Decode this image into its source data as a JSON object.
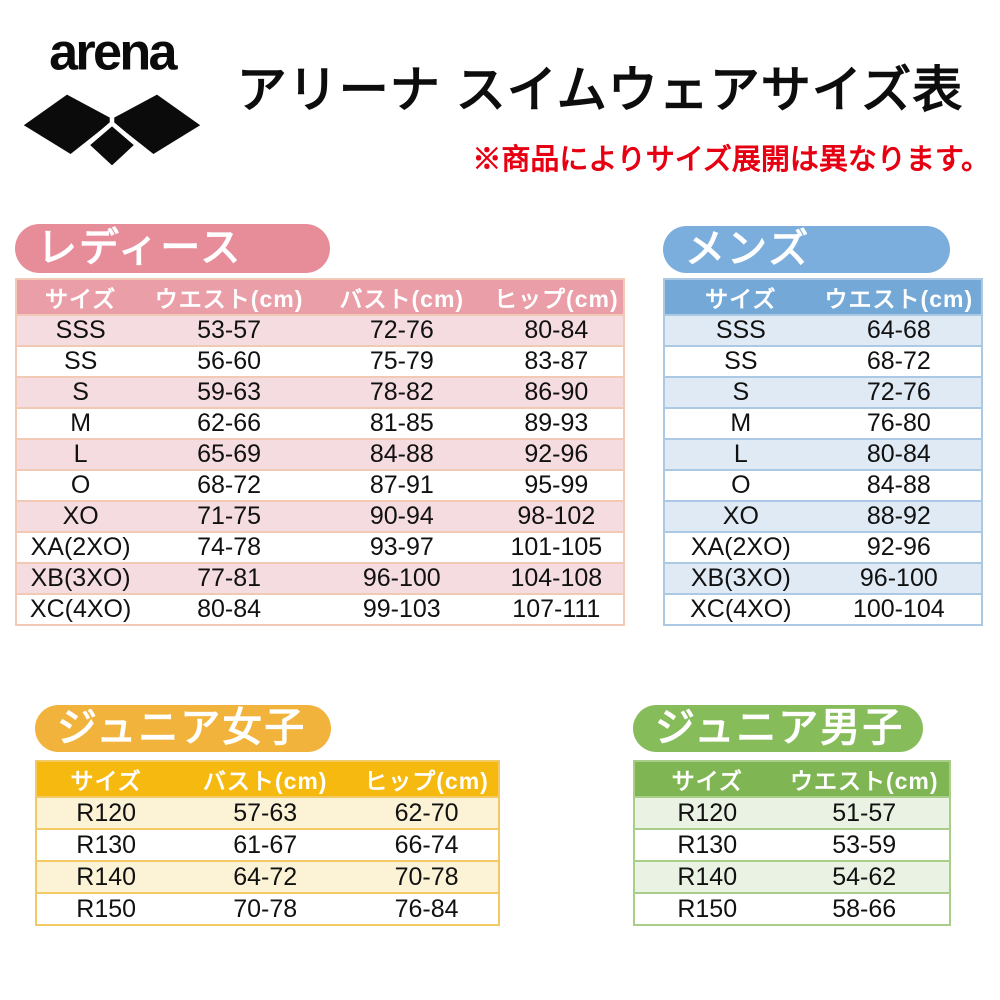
{
  "brand": {
    "logo_text": "arena",
    "logo_color": "#0b0b0b"
  },
  "header": {
    "title": "アリーナ スイムウェアサイズ表",
    "note": "※商品によりサイズ展開は異なります。",
    "note_color": "#e60012"
  },
  "sections": {
    "ladies": {
      "label": "レディース",
      "colors": {
        "pill": "#e78c99",
        "head": "#e99ea8",
        "stripe": "#f4dce1",
        "border": "#f2c9b5"
      },
      "columns": [
        "サイズ",
        "ウエスト(cm)",
        "バスト(cm)",
        "ヒップ(cm)"
      ],
      "rows": [
        [
          "SSS",
          "53-57",
          "72-76",
          "80-84"
        ],
        [
          "SS",
          "56-60",
          "75-79",
          "83-87"
        ],
        [
          "S",
          "59-63",
          "78-82",
          "86-90"
        ],
        [
          "M",
          "62-66",
          "81-85",
          "89-93"
        ],
        [
          "L",
          "65-69",
          "84-88",
          "92-96"
        ],
        [
          "O",
          "68-72",
          "87-91",
          "95-99"
        ],
        [
          "XO",
          "71-75",
          "90-94",
          "98-102"
        ],
        [
          "XA(2XO)",
          "74-78",
          "93-97",
          "101-105"
        ],
        [
          "XB(3XO)",
          "77-81",
          "96-100",
          "104-108"
        ],
        [
          "XC(4XO)",
          "80-84",
          "99-103",
          "107-111"
        ]
      ]
    },
    "mens": {
      "label": "メンズ",
      "colors": {
        "pill": "#7baedc",
        "head": "#74a8d6",
        "stripe": "#dfeaf5",
        "border": "#abc8e4"
      },
      "columns": [
        "サイズ",
        "ウエスト(cm)"
      ],
      "rows": [
        [
          "SSS",
          "64-68"
        ],
        [
          "SS",
          "68-72"
        ],
        [
          "S",
          "72-76"
        ],
        [
          "M",
          "76-80"
        ],
        [
          "L",
          "80-84"
        ],
        [
          "O",
          "84-88"
        ],
        [
          "XO",
          "88-92"
        ],
        [
          "XA(2XO)",
          "92-96"
        ],
        [
          "XB(3XO)",
          "96-100"
        ],
        [
          "XC(4XO)",
          "100-104"
        ]
      ]
    },
    "junior_girls": {
      "label": "ジュニア女子",
      "colors": {
        "pill": "#f1b33b",
        "head": "#f6b90f",
        "stripe": "#fcf3d6",
        "border": "#f3c966"
      },
      "columns": [
        "サイズ",
        "バスト(cm)",
        "ヒップ(cm)"
      ],
      "rows": [
        [
          "R120",
          "57-63",
          "62-70"
        ],
        [
          "R130",
          "61-67",
          "66-74"
        ],
        [
          "R140",
          "64-72",
          "70-78"
        ],
        [
          "R150",
          "70-78",
          "76-84"
        ]
      ]
    },
    "junior_boys": {
      "label": "ジュニア男子",
      "colors": {
        "pill": "#87bc5b",
        "head": "#7fb552",
        "stripe": "#eaf3e3",
        "border": "#a9ce89"
      },
      "columns": [
        "サイズ",
        "ウエスト(cm)"
      ],
      "rows": [
        [
          "R120",
          "51-57"
        ],
        [
          "R130",
          "53-59"
        ],
        [
          "R140",
          "54-62"
        ],
        [
          "R150",
          "58-66"
        ]
      ]
    }
  }
}
